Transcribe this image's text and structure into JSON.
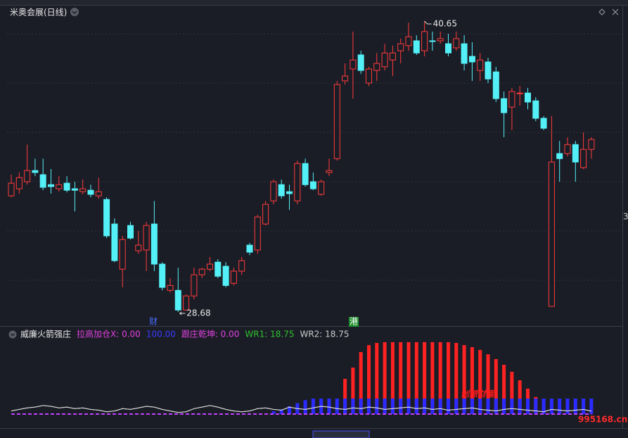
{
  "chart_data": [
    {
      "type": "candlestick",
      "title": "米奥会展(日线)",
      "up_color": "#ff3b3b",
      "down_color": "#54f0f8",
      "open": [
        33.46,
        33.75,
        34.04,
        34.5,
        34.33,
        33.92,
        33.75,
        33.98,
        33.75,
        33.63,
        33.69,
        33.46,
        33.31,
        32.3,
        30.44,
        32.24,
        31.2,
        31.23,
        32.3,
        30.65,
        29.57,
        29.57,
        28.76,
        29.34,
        30.21,
        30.44,
        30.73,
        30.56,
        29.86,
        30.36,
        31.43,
        31.23,
        32.3,
        33.25,
        33.92,
        33.63,
        33.25,
        34.79,
        34.04,
        33.52,
        34.42,
        34.99,
        38.19,
        38.68,
        39.26,
        38.1,
        38.62,
        38.77,
        39.05,
        39.43,
        39.64,
        39.84,
        39.43,
        39.84,
        39.84,
        39.72,
        39.55,
        39.72,
        39.2,
        38.62,
        38.97,
        38.56,
        37.46,
        37.11,
        37.66,
        37.69,
        37.37,
        36.65,
        28.91,
        35.2,
        35.2,
        35.57,
        34.62,
        35.37
      ],
      "high": [
        34.33,
        34.42,
        35.57,
        34.99,
        34.99,
        34.56,
        34.27,
        34.27,
        34.04,
        34.13,
        33.92,
        34.21,
        33.4,
        32.53,
        31.81,
        32.39,
        32.01,
        32.39,
        33.25,
        30.73,
        30.07,
        30.5,
        29.4,
        30.5,
        30.5,
        30.94,
        30.85,
        30.73,
        30.5,
        30.94,
        31.52,
        32.68,
        33.25,
        34.13,
        34.13,
        33.92,
        34.91,
        34.99,
        34.42,
        34.13,
        34.99,
        38.19,
        38.91,
        40.22,
        39.43,
        38.77,
        39.34,
        39.72,
        39.64,
        39.93,
        40.59,
        40.07,
        40.65,
        40.22,
        40.22,
        40.13,
        40.22,
        40.07,
        39.78,
        39.34,
        39.14,
        38.77,
        37.75,
        37.9,
        37.98,
        37.9,
        37.52,
        36.74,
        36.74,
        35.72,
        35.87,
        35.72,
        36.07,
        35.87
      ],
      "low": [
        33.4,
        33.55,
        33.92,
        34.27,
        33.69,
        33.55,
        33.63,
        33.6,
        32.82,
        33.52,
        33.4,
        33.34,
        31.72,
        30.73,
        29.69,
        31.66,
        31.08,
        30.36,
        30.36,
        29.57,
        29.48,
        28.68,
        28.76,
        29.2,
        30.07,
        30.36,
        30.07,
        29.69,
        29.77,
        30.21,
        31.02,
        31.08,
        32.24,
        33.11,
        33.34,
        32.88,
        33.11,
        33.84,
        33.69,
        33.46,
        34.27,
        34.91,
        38.04,
        37.46,
        38.48,
        37.98,
        38.19,
        38.62,
        38.39,
        38.91,
        39.43,
        39.26,
        39.2,
        39.43,
        39.72,
        39.2,
        39.43,
        38.62,
        38.19,
        38.19,
        38.1,
        37.32,
        35.87,
        36.16,
        37.17,
        37.02,
        36.53,
        36.16,
        28.91,
        34.04,
        35.08,
        34.04,
        34.56,
        34.99
      ],
      "close": [
        33.98,
        34.21,
        34.5,
        34.42,
        33.81,
        33.84,
        33.92,
        33.69,
        33.69,
        33.75,
        33.52,
        33.63,
        31.81,
        30.79,
        31.66,
        31.72,
        31.43,
        32.24,
        30.65,
        29.69,
        29.77,
        28.76,
        29.34,
        30.21,
        30.44,
        30.65,
        30.15,
        29.77,
        30.36,
        30.79,
        31.14,
        32.59,
        33.11,
        34.04,
        33.46,
        33.55,
        34.79,
        33.92,
        33.75,
        34.04,
        34.5,
        38.04,
        38.39,
        39.05,
        38.62,
        38.68,
        38.91,
        39.34,
        39.34,
        39.72,
        40.01,
        39.34,
        40.22,
        39.81,
        39.93,
        39.34,
        39.93,
        38.91,
        38.97,
        39.05,
        38.27,
        37.46,
        36.88,
        37.75,
        37.69,
        37.32,
        36.65,
        36.24,
        34.85,
        34.99,
        35.57,
        34.85,
        35.37,
        35.78
      ],
      "annotations": [
        {
          "value": 40.65
        },
        {
          "value": 28.68
        }
      ],
      "markers": [
        {
          "label": "财",
          "color": "#4a6cff"
        },
        {
          "label": "港",
          "color": "#ffffff"
        }
      ],
      "right_edge_label": "3"
    },
    {
      "type": "indicator",
      "title": "威廉火箭强庄",
      "series": [
        {
          "name": "拉高加仓X: 0.00",
          "kind": "bar",
          "color": "#ff2222",
          "label_color": "#e040e0",
          "values": [
            0,
            0,
            0,
            0,
            0,
            0,
            0,
            0,
            0,
            0,
            0,
            0,
            0,
            0,
            0,
            0,
            0,
            0,
            0,
            0,
            0,
            0,
            0,
            0,
            0,
            0,
            0,
            0,
            0,
            0,
            0,
            0,
            0,
            0,
            0,
            0,
            0,
            0,
            0,
            0,
            0,
            0,
            227,
            300,
            400,
            445,
            459,
            464,
            464,
            464,
            464,
            464,
            464,
            464,
            464,
            464,
            459,
            445,
            432,
            414,
            386,
            355,
            318,
            273,
            218,
            164,
            110,
            55,
            0,
            0,
            0,
            0,
            0,
            0
          ]
        },
        {
          "name": "100.00",
          "kind": "bar",
          "color": "#2b2bff",
          "label_color": "#3a3aff",
          "values": [
            0,
            0,
            0,
            0,
            0,
            0,
            0,
            0,
            0,
            0,
            0,
            0,
            0,
            0,
            0,
            0,
            0,
            0,
            0,
            0,
            0,
            0,
            0,
            0,
            0,
            0,
            0,
            0,
            0,
            0,
            0,
            0,
            0,
            18,
            30,
            50,
            70,
            90,
            100,
            100,
            100,
            100,
            100,
            100,
            100,
            100,
            100,
            100,
            100,
            100,
            100,
            100,
            100,
            100,
            100,
            100,
            100,
            100,
            100,
            100,
            100,
            100,
            100,
            100,
            100,
            100,
            100,
            100,
            100,
            100,
            100,
            100,
            100,
            100
          ]
        },
        {
          "name": "跟庄乾坤: 0.00",
          "kind": "dashed",
          "color": "#c040ff",
          "label_color": "#e040e0",
          "values": [
            0,
            0,
            0,
            0,
            0,
            0,
            0,
            0,
            0,
            0,
            0,
            0,
            0,
            0,
            0,
            0,
            0,
            0,
            0,
            0,
            0,
            0,
            0,
            0,
            0,
            0,
            0,
            0,
            0,
            0,
            0,
            0,
            0,
            0,
            0,
            0,
            0,
            0,
            0,
            0,
            0,
            0,
            0,
            0,
            0,
            0,
            0,
            0,
            0,
            0,
            0,
            0,
            0,
            0,
            0,
            0,
            0,
            0,
            0,
            0,
            0,
            0,
            0,
            0,
            0,
            0,
            0,
            0,
            0,
            0,
            0,
            0,
            0,
            0
          ]
        },
        {
          "name": "WR1: 18.75",
          "kind": "line",
          "color": "#dddddd",
          "label_color": "#2ec22e",
          "values": [
            20,
            30,
            40,
            45,
            55,
            50,
            40,
            45,
            35,
            40,
            30,
            25,
            15,
            20,
            35,
            30,
            40,
            50,
            45,
            30,
            20,
            10,
            15,
            35,
            45,
            55,
            45,
            30,
            20,
            15,
            20,
            35,
            40,
            30,
            25,
            45,
            35,
            30,
            40,
            50,
            45,
            35,
            30,
            40,
            35,
            45,
            40,
            30,
            35,
            40,
            45,
            35,
            40,
            30,
            35,
            25,
            30,
            35,
            40,
            30,
            25,
            20,
            30,
            35,
            30,
            25,
            20,
            15,
            30,
            25,
            20,
            25,
            30,
            18.75
          ]
        },
        {
          "name": "WR2: 18.75",
          "kind": "line",
          "color": "#dddddd",
          "label_color": "#cccccc",
          "values": [
            20,
            30,
            40,
            45,
            55,
            50,
            40,
            45,
            35,
            40,
            30,
            25,
            15,
            20,
            35,
            30,
            40,
            50,
            45,
            30,
            20,
            10,
            15,
            35,
            45,
            55,
            45,
            30,
            20,
            15,
            20,
            35,
            40,
            30,
            25,
            45,
            35,
            30,
            40,
            50,
            45,
            35,
            30,
            40,
            35,
            45,
            40,
            30,
            35,
            40,
            45,
            35,
            40,
            30,
            35,
            25,
            30,
            35,
            40,
            30,
            25,
            20,
            30,
            35,
            30,
            25,
            20,
            15,
            30,
            25,
            20,
            25,
            30,
            18.75
          ]
        }
      ],
      "watermark": {
        "text": "创想财富",
        "site": "995168.cn"
      }
    }
  ]
}
